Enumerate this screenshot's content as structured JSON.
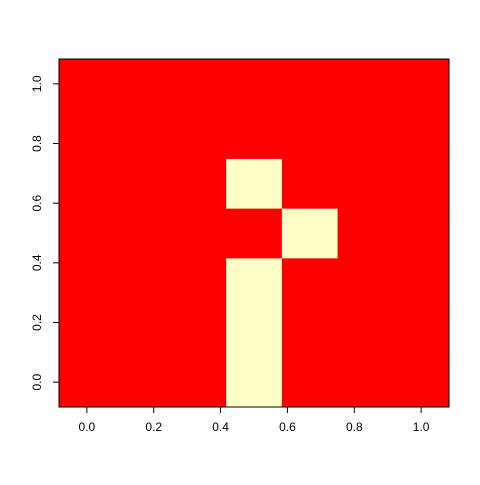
{
  "chart_data": {
    "type": "heatmap",
    "title": "",
    "xlabel": "",
    "ylabel": "",
    "x": [
      0.0,
      0.1667,
      0.3333,
      0.5,
      0.6667,
      0.8333,
      1.0
    ],
    "y": [
      0.0,
      0.1667,
      0.3333,
      0.5,
      0.6667,
      0.8333,
      1.0
    ],
    "xlim": [
      -0.0833,
      1.0833
    ],
    "ylim": [
      -0.0833,
      1.0833
    ],
    "x_ticks": [
      {
        "value": 0.0,
        "label": "0.0"
      },
      {
        "value": 0.2,
        "label": "0.2"
      },
      {
        "value": 0.4,
        "label": "0.4"
      },
      {
        "value": 0.6,
        "label": "0.6"
      },
      {
        "value": 0.8,
        "label": "0.8"
      },
      {
        "value": 1.0,
        "label": "1.0"
      }
    ],
    "y_ticks": [
      {
        "value": 0.0,
        "label": "0.0"
      },
      {
        "value": 0.2,
        "label": "0.2"
      },
      {
        "value": 0.4,
        "label": "0.4"
      },
      {
        "value": 0.6,
        "label": "0.6"
      },
      {
        "value": 0.8,
        "label": "0.8"
      },
      {
        "value": 1.0,
        "label": "1.0"
      }
    ],
    "z_rows_bottom_to_top": [
      [
        0,
        0,
        0,
        1,
        0,
        0,
        0
      ],
      [
        0,
        0,
        0,
        1,
        0,
        0,
        0
      ],
      [
        0,
        0,
        0,
        1,
        0,
        0,
        0
      ],
      [
        0,
        0,
        0,
        0,
        1,
        0,
        0
      ],
      [
        0,
        0,
        0,
        1,
        0,
        0,
        0
      ],
      [
        0,
        0,
        0,
        0,
        0,
        0,
        0
      ],
      [
        0,
        0,
        0,
        0,
        0,
        0,
        0
      ]
    ],
    "palette": [
      "#ff0000",
      "#ffffc8"
    ],
    "grid": false,
    "legend": "none"
  }
}
